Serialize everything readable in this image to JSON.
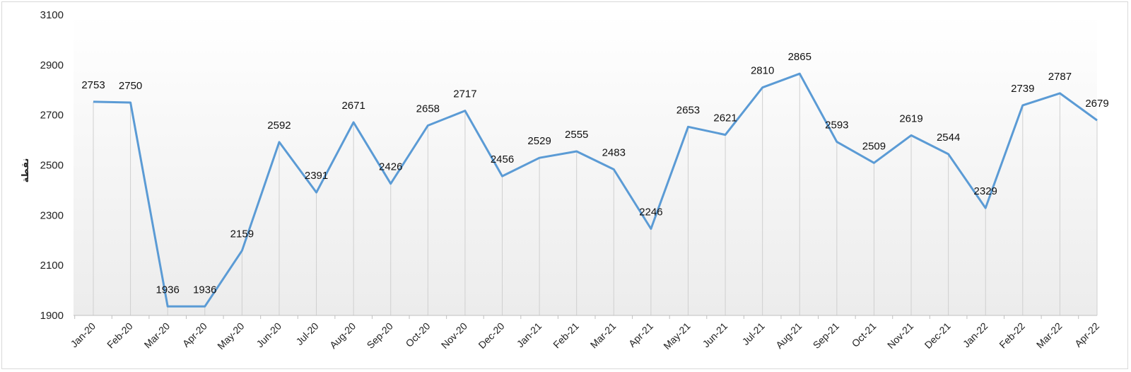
{
  "chart_data": {
    "type": "line",
    "title": "",
    "xlabel": "",
    "ylabel": "نقطة",
    "ylim": [
      1900,
      3100
    ],
    "yticks": [
      1900,
      2100,
      2300,
      2500,
      2700,
      2900,
      3100
    ],
    "grid": "vertical drop lines",
    "legend": "none",
    "line_color": "#5b9bd5",
    "categories": [
      "Jan-20",
      "Feb-20",
      "Mar-20",
      "Apr-20",
      "May-20",
      "Jun-20",
      "Jul-20",
      "Aug-20",
      "Sep-20",
      "Oct-20",
      "Nov-20",
      "Dec-20",
      "Jan-21",
      "Feb-21",
      "Mar-21",
      "Apr-21",
      "May-21",
      "Jun-21",
      "Jul-21",
      "Aug-21",
      "Sep-21",
      "Oct-21",
      "Nov-21",
      "Dec-21",
      "Jan-22",
      "Feb-22",
      "Mar-22",
      "Apr-22"
    ],
    "series": [
      {
        "values": [
          2753,
          2750,
          1936,
          1936,
          2159,
          2592,
          2391,
          2671,
          2426,
          2658,
          2717,
          2456,
          2529,
          2555,
          2483,
          2246,
          2653,
          2621,
          2810,
          2865,
          2593,
          2509,
          2619,
          2544,
          2329,
          2739,
          2787,
          2679
        ]
      }
    ]
  }
}
